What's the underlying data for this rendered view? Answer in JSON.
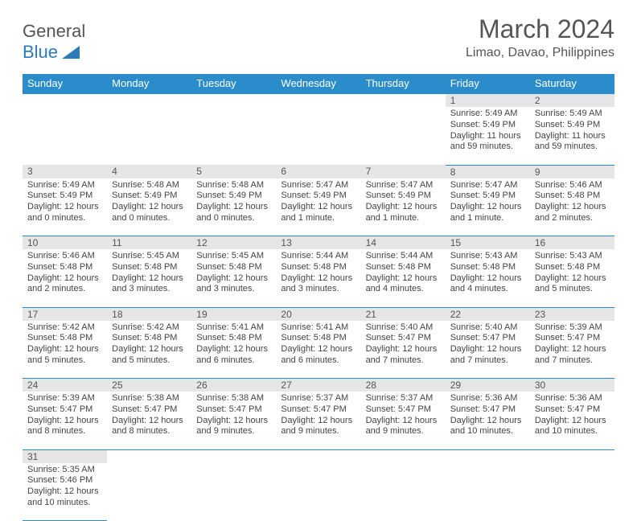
{
  "logo": {
    "top": "General",
    "bottom": "Blue"
  },
  "title": "March 2024",
  "location": "Limao, Davao, Philippines",
  "dayHeaders": [
    "Sunday",
    "Monday",
    "Tuesday",
    "Wednesday",
    "Thursday",
    "Friday",
    "Saturday"
  ],
  "colors": {
    "headerBg": "#2b8ccc",
    "headerText": "#ffffff",
    "dayBg": "#e6e6e6",
    "rowBorder": "#2b8ccc",
    "text": "#444444",
    "logoBlue": "#2b7bbf"
  },
  "weeks": [
    [
      null,
      null,
      null,
      null,
      null,
      {
        "n": "1",
        "sr": "5:49 AM",
        "ss": "5:49 PM",
        "dl": "11 hours and 59 minutes."
      },
      {
        "n": "2",
        "sr": "5:49 AM",
        "ss": "5:49 PM",
        "dl": "11 hours and 59 minutes."
      }
    ],
    [
      {
        "n": "3",
        "sr": "5:49 AM",
        "ss": "5:49 PM",
        "dl": "12 hours and 0 minutes."
      },
      {
        "n": "4",
        "sr": "5:48 AM",
        "ss": "5:49 PM",
        "dl": "12 hours and 0 minutes."
      },
      {
        "n": "5",
        "sr": "5:48 AM",
        "ss": "5:49 PM",
        "dl": "12 hours and 0 minutes."
      },
      {
        "n": "6",
        "sr": "5:47 AM",
        "ss": "5:49 PM",
        "dl": "12 hours and 1 minute."
      },
      {
        "n": "7",
        "sr": "5:47 AM",
        "ss": "5:49 PM",
        "dl": "12 hours and 1 minute."
      },
      {
        "n": "8",
        "sr": "5:47 AM",
        "ss": "5:49 PM",
        "dl": "12 hours and 1 minute."
      },
      {
        "n": "9",
        "sr": "5:46 AM",
        "ss": "5:48 PM",
        "dl": "12 hours and 2 minutes."
      }
    ],
    [
      {
        "n": "10",
        "sr": "5:46 AM",
        "ss": "5:48 PM",
        "dl": "12 hours and 2 minutes."
      },
      {
        "n": "11",
        "sr": "5:45 AM",
        "ss": "5:48 PM",
        "dl": "12 hours and 3 minutes."
      },
      {
        "n": "12",
        "sr": "5:45 AM",
        "ss": "5:48 PM",
        "dl": "12 hours and 3 minutes."
      },
      {
        "n": "13",
        "sr": "5:44 AM",
        "ss": "5:48 PM",
        "dl": "12 hours and 3 minutes."
      },
      {
        "n": "14",
        "sr": "5:44 AM",
        "ss": "5:48 PM",
        "dl": "12 hours and 4 minutes."
      },
      {
        "n": "15",
        "sr": "5:43 AM",
        "ss": "5:48 PM",
        "dl": "12 hours and 4 minutes."
      },
      {
        "n": "16",
        "sr": "5:43 AM",
        "ss": "5:48 PM",
        "dl": "12 hours and 5 minutes."
      }
    ],
    [
      {
        "n": "17",
        "sr": "5:42 AM",
        "ss": "5:48 PM",
        "dl": "12 hours and 5 minutes."
      },
      {
        "n": "18",
        "sr": "5:42 AM",
        "ss": "5:48 PM",
        "dl": "12 hours and 5 minutes."
      },
      {
        "n": "19",
        "sr": "5:41 AM",
        "ss": "5:48 PM",
        "dl": "12 hours and 6 minutes."
      },
      {
        "n": "20",
        "sr": "5:41 AM",
        "ss": "5:48 PM",
        "dl": "12 hours and 6 minutes."
      },
      {
        "n": "21",
        "sr": "5:40 AM",
        "ss": "5:47 PM",
        "dl": "12 hours and 7 minutes."
      },
      {
        "n": "22",
        "sr": "5:40 AM",
        "ss": "5:47 PM",
        "dl": "12 hours and 7 minutes."
      },
      {
        "n": "23",
        "sr": "5:39 AM",
        "ss": "5:47 PM",
        "dl": "12 hours and 7 minutes."
      }
    ],
    [
      {
        "n": "24",
        "sr": "5:39 AM",
        "ss": "5:47 PM",
        "dl": "12 hours and 8 minutes."
      },
      {
        "n": "25",
        "sr": "5:38 AM",
        "ss": "5:47 PM",
        "dl": "12 hours and 8 minutes."
      },
      {
        "n": "26",
        "sr": "5:38 AM",
        "ss": "5:47 PM",
        "dl": "12 hours and 9 minutes."
      },
      {
        "n": "27",
        "sr": "5:37 AM",
        "ss": "5:47 PM",
        "dl": "12 hours and 9 minutes."
      },
      {
        "n": "28",
        "sr": "5:37 AM",
        "ss": "5:47 PM",
        "dl": "12 hours and 9 minutes."
      },
      {
        "n": "29",
        "sr": "5:36 AM",
        "ss": "5:47 PM",
        "dl": "12 hours and 10 minutes."
      },
      {
        "n": "30",
        "sr": "5:36 AM",
        "ss": "5:47 PM",
        "dl": "12 hours and 10 minutes."
      }
    ],
    [
      {
        "n": "31",
        "sr": "5:35 AM",
        "ss": "5:46 PM",
        "dl": "12 hours and 10 minutes."
      },
      null,
      null,
      null,
      null,
      null,
      null
    ]
  ],
  "labels": {
    "sunrise": "Sunrise:",
    "sunset": "Sunset:",
    "daylight": "Daylight:"
  }
}
